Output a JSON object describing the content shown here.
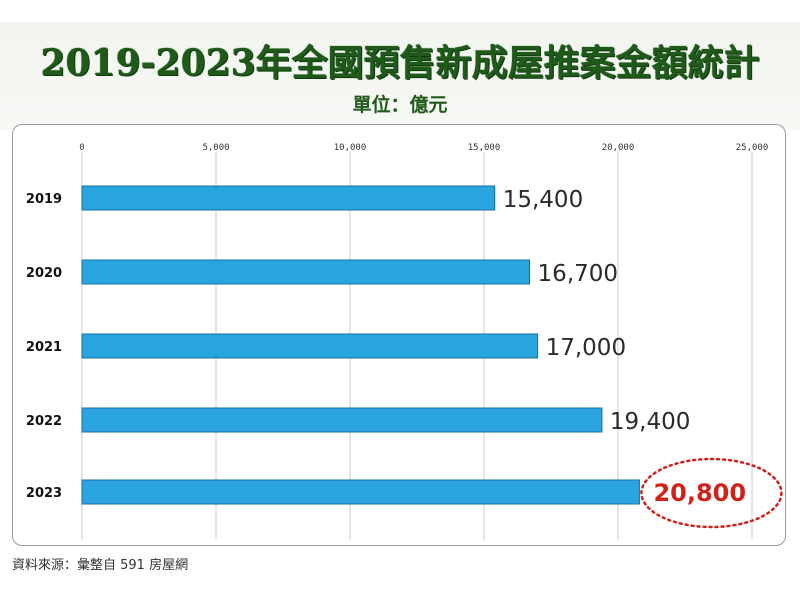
{
  "chart_data": {
    "type": "bar",
    "orientation": "horizontal",
    "title": "2019-2023年全國預售新成屋推案金額統計",
    "subtitle": "單位：億元",
    "categories": [
      "2019",
      "2020",
      "2021",
      "2022",
      "2023"
    ],
    "values": [
      15400,
      16700,
      17000,
      19400,
      20800
    ],
    "value_labels": [
      "15,400",
      "16,700",
      "17,000",
      "19,400",
      "20,800"
    ],
    "xlim": [
      0,
      25000
    ],
    "x_ticks": [
      0,
      5000,
      10000,
      15000,
      20000,
      25000
    ],
    "x_tick_labels": [
      "0",
      "5,000",
      "10,000",
      "15,000",
      "20,000",
      "25,000"
    ],
    "x_axis_position": "top",
    "grid": true,
    "highlight_index": 4,
    "colors": {
      "bar": "#2aa4de",
      "bar_edge": "#1a6f99",
      "grid": "#cfcfcf",
      "highlight_text": "#d0211b",
      "highlight_ring": "#d0211b",
      "title": "#1f5a1b"
    }
  },
  "source": "資料來源：彙整自 591 房屋網"
}
